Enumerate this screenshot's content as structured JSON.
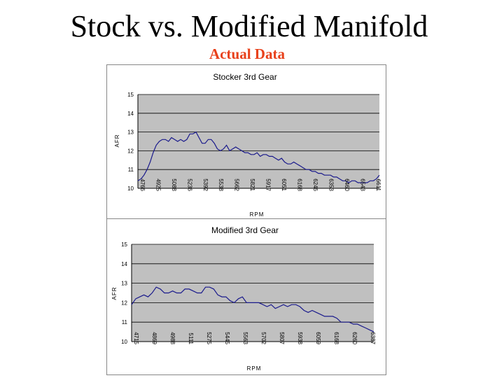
{
  "slide": {
    "title": "Stock vs. Modified Manifold",
    "subtitle": "Actual Data",
    "subtitle_color": "#e8401a"
  },
  "colors": {
    "plot_bg": "#c0c0c0",
    "line": "#1a1a8c",
    "grid": "#000000"
  },
  "chart_data": [
    {
      "type": "line",
      "title": "Stocker 3rd Gear",
      "xlabel": "RPM",
      "ylabel": "AFR",
      "ylim": [
        10,
        15
      ],
      "yticks": [
        10,
        11,
        12,
        13,
        14,
        15
      ],
      "x_tick_labels": [
        "4766",
        "4925",
        "5088",
        "5236",
        "5392",
        "5538",
        "5662",
        "5821",
        "5917",
        "6051",
        "6168",
        "6246",
        "6353",
        "6460",
        "6543",
        "6611"
      ],
      "grid": "horizontal",
      "legend": "none",
      "series": [
        {
          "values": [
            10.4,
            10.5,
            10.7,
            11.0,
            11.4,
            11.9,
            12.3,
            12.5,
            12.6,
            12.6,
            12.5,
            12.7,
            12.6,
            12.5,
            12.6,
            12.5,
            12.6,
            12.9,
            12.9,
            13.0,
            12.7,
            12.4,
            12.4,
            12.6,
            12.6,
            12.4,
            12.1,
            12.0,
            12.1,
            12.3,
            12.0,
            12.1,
            12.2,
            12.1,
            12.0,
            11.9,
            11.9,
            11.8,
            11.8,
            11.9,
            11.7,
            11.8,
            11.8,
            11.7,
            11.7,
            11.6,
            11.5,
            11.6,
            11.4,
            11.3,
            11.3,
            11.4,
            11.3,
            11.2,
            11.1,
            11.0,
            11.0,
            10.9,
            10.9,
            10.8,
            10.8,
            10.7,
            10.7,
            10.7,
            10.6,
            10.6,
            10.5,
            10.4,
            10.4,
            10.3,
            10.4,
            10.4,
            10.3,
            10.3,
            10.3,
            10.3,
            10.4,
            10.4,
            10.5,
            10.7
          ]
        }
      ]
    },
    {
      "type": "line",
      "title": "Modified 3rd Gear",
      "xlabel": "RPM",
      "ylabel": "AFR",
      "ylim": [
        10,
        15
      ],
      "yticks": [
        10,
        11,
        12,
        13,
        14,
        15
      ],
      "x_tick_labels": [
        "4715",
        "4869",
        "4988",
        "5111",
        "5275",
        "5445",
        "5563",
        "5702",
        "5807",
        "5938",
        "6059",
        "6168",
        "6260",
        "6387"
      ],
      "grid": "horizontal",
      "legend": "none",
      "series": [
        {
          "values": [
            11.9,
            12.2,
            12.3,
            12.4,
            12.3,
            12.5,
            12.8,
            12.7,
            12.5,
            12.5,
            12.6,
            12.5,
            12.5,
            12.7,
            12.7,
            12.6,
            12.5,
            12.5,
            12.8,
            12.8,
            12.7,
            12.4,
            12.3,
            12.3,
            12.1,
            12.0,
            12.2,
            12.3,
            12.0,
            12.0,
            12.0,
            12.0,
            11.9,
            11.8,
            11.9,
            11.7,
            11.8,
            11.9,
            11.8,
            11.9,
            11.9,
            11.8,
            11.6,
            11.5,
            11.6,
            11.5,
            11.4,
            11.3,
            11.3,
            11.3,
            11.2,
            11.0,
            11.0,
            11.0,
            10.9,
            10.9,
            10.8,
            10.7,
            10.6,
            10.5
          ]
        }
      ]
    }
  ]
}
